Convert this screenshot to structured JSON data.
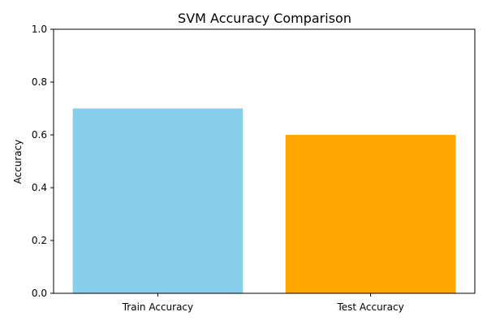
{
  "chart_data": {
    "type": "bar",
    "title": "SVM Accuracy Comparison",
    "xlabel": "",
    "ylabel": "Accuracy",
    "categories": [
      "Train Accuracy",
      "Test Accuracy"
    ],
    "values": [
      0.7,
      0.6
    ],
    "colors": [
      "#87ceeb",
      "#ffa500"
    ],
    "ylim": [
      0,
      1.0
    ],
    "yticks": [
      "0.0",
      "0.2",
      "0.4",
      "0.6",
      "0.8",
      "1.0"
    ],
    "grid": false,
    "legend": false
  }
}
